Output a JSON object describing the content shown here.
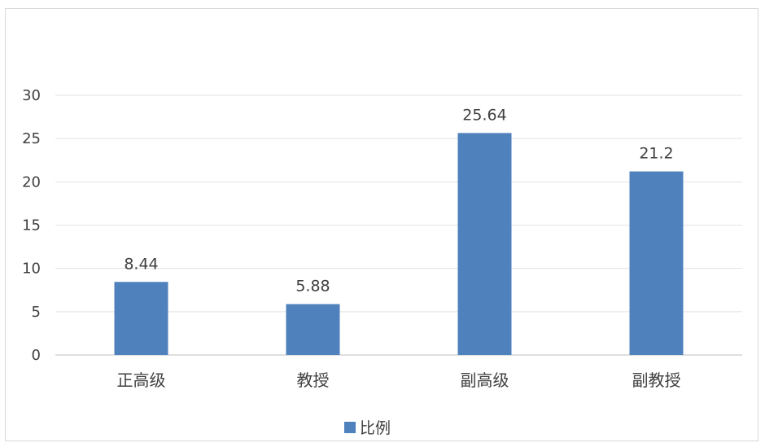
{
  "chart_data": {
    "type": "bar",
    "title": "",
    "xlabel": "",
    "ylabel": "",
    "categories": [
      "正高级",
      "教授",
      "副高级",
      "副教授"
    ],
    "series": [
      {
        "name": "比例",
        "values": [
          8.44,
          5.88,
          25.64,
          21.2
        ],
        "data_labels": [
          "8.44",
          "5.88",
          "25.64",
          "21.2"
        ],
        "color": "#4f81bd"
      }
    ],
    "ylim": [
      0,
      30
    ],
    "yticks": [
      "0",
      "5",
      "10",
      "15",
      "20",
      "25",
      "30"
    ],
    "grid": true,
    "legend_position": "bottom"
  }
}
